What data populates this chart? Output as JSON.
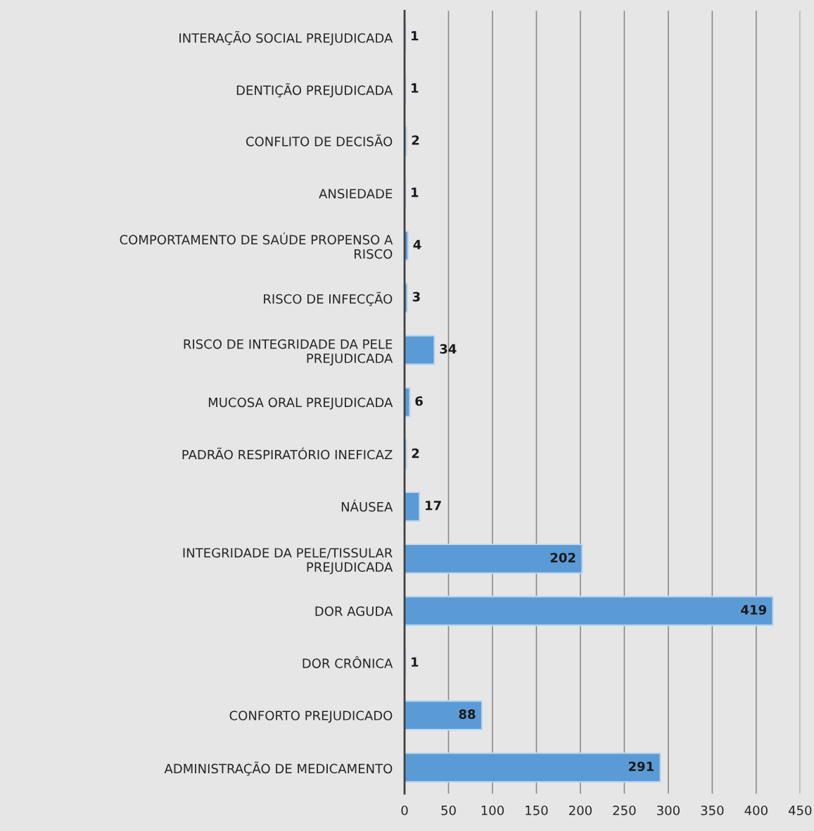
{
  "chart_data": {
    "type": "bar",
    "orientation": "horizontal",
    "categories": [
      "INTERAÇÃO SOCIAL PREJUDICADA",
      "DENTIÇÃO PREJUDICADA",
      "CONFLITO DE DECISÃO",
      "ANSIEDADE",
      "COMPORTAMENTO DE SAÚDE PROPENSO A\nRISCO",
      "RISCO DE INFECÇÃO",
      "RISCO DE INTEGRIDADE DA PELE\nPREJUDICADA",
      "MUCOSA ORAL PREJUDICADA",
      "PADRÃO RESPIRATÓRIO INEFICAZ",
      "NÁUSEA",
      "INTEGRIDADE DA PELE/TISSULAR\nPREJUDICADA",
      "DOR AGUDA",
      "DOR CRÔNICA",
      "CONFORTO PREJUDICADO",
      "ADMINISTRAÇÃO DE MEDICAMENTO"
    ],
    "values": [
      1,
      1,
      2,
      1,
      4,
      3,
      34,
      6,
      2,
      17,
      202,
      419,
      1,
      88,
      291
    ],
    "color": "#5b9bd5",
    "xlim": [
      0,
      450
    ],
    "xticks": [
      0,
      50,
      100,
      150,
      200,
      250,
      300,
      350,
      400,
      450
    ],
    "grid": "x",
    "data_labels": true
  }
}
